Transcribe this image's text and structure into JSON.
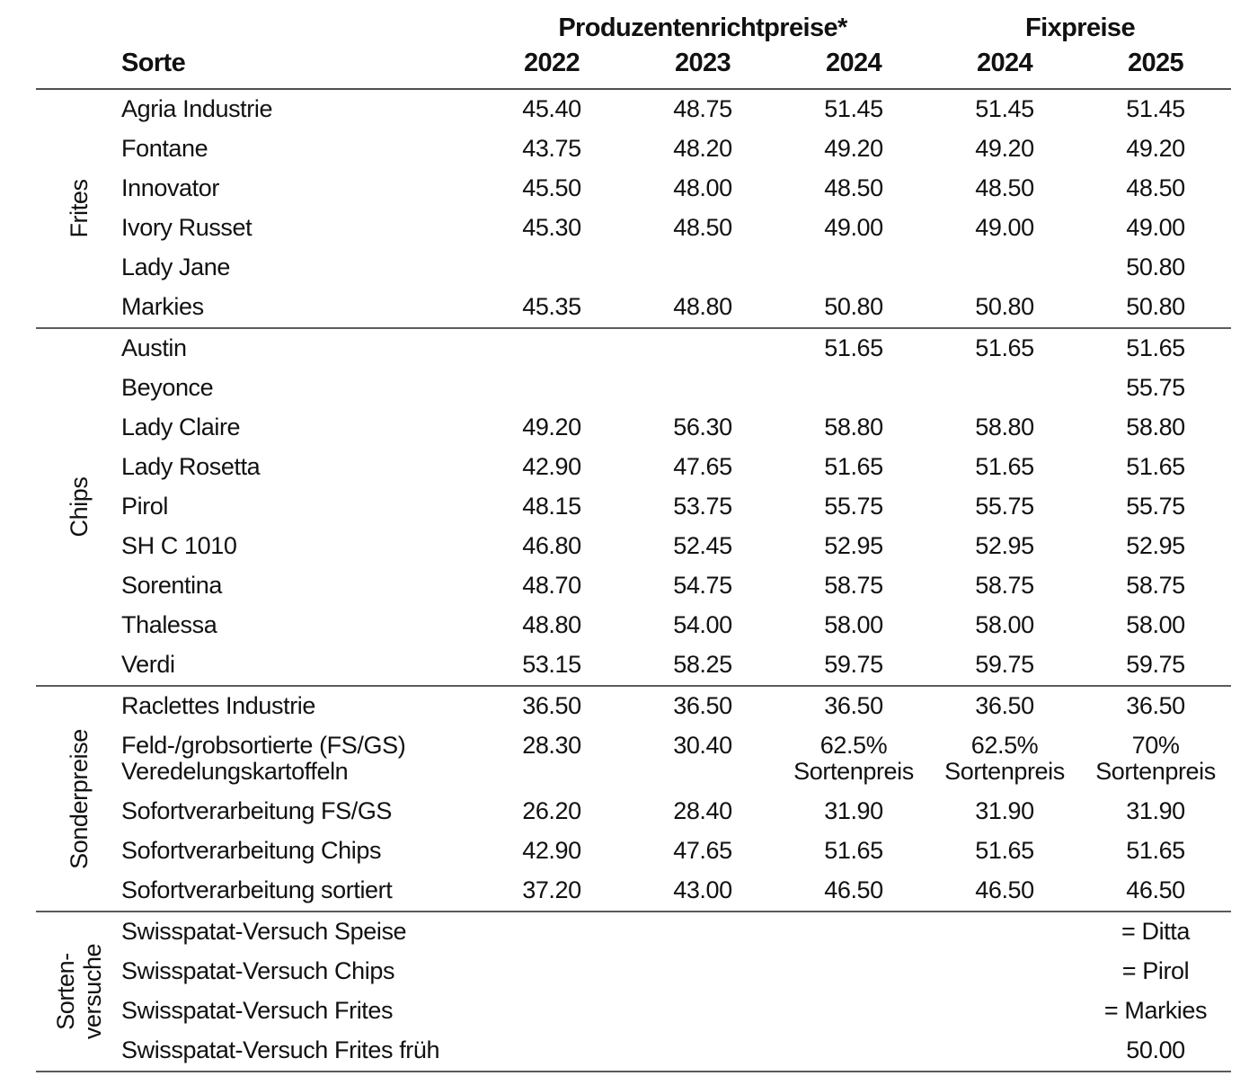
{
  "colors": {
    "background": "#ffffff",
    "text": "#111111",
    "rule": "#5b5b5b"
  },
  "table": {
    "col_groups": [
      {
        "label": "Produzentenrichtpreise*",
        "span": 3
      },
      {
        "label": "Fixpreise",
        "span": 2
      }
    ],
    "sorte_header": "Sorte",
    "year_headers": [
      "2022",
      "2023",
      "2024",
      "2024",
      "2025"
    ],
    "groups": [
      {
        "label": "Frites",
        "rows": [
          {
            "sorte": "Agria Industrie",
            "values": [
              "45.40",
              "48.75",
              "51.45",
              "51.45",
              "51.45"
            ]
          },
          {
            "sorte": "Fontane",
            "values": [
              "43.75",
              "48.20",
              "49.20",
              "49.20",
              "49.20"
            ]
          },
          {
            "sorte": "Innovator",
            "values": [
              "45.50",
              "48.00",
              "48.50",
              "48.50",
              "48.50"
            ]
          },
          {
            "sorte": "Ivory Russet",
            "values": [
              "45.30",
              "48.50",
              "49.00",
              "49.00",
              "49.00"
            ]
          },
          {
            "sorte": "Lady Jane",
            "values": [
              "",
              "",
              "",
              "",
              "50.80"
            ]
          },
          {
            "sorte": "Markies",
            "values": [
              "45.35",
              "48.80",
              "50.80",
              "50.80",
              "50.80"
            ]
          }
        ]
      },
      {
        "label": "Chips",
        "rows": [
          {
            "sorte": "Austin",
            "values": [
              "",
              "",
              "51.65",
              "51.65",
              "51.65"
            ]
          },
          {
            "sorte": "Beyonce",
            "values": [
              "",
              "",
              "",
              "",
              "55.75"
            ]
          },
          {
            "sorte": "Lady Claire",
            "values": [
              "49.20",
              "56.30",
              "58.80",
              "58.80",
              "58.80"
            ]
          },
          {
            "sorte": "Lady Rosetta",
            "values": [
              "42.90",
              "47.65",
              "51.65",
              "51.65",
              "51.65"
            ]
          },
          {
            "sorte": "Pirol",
            "values": [
              "48.15",
              "53.75",
              "55.75",
              "55.75",
              "55.75"
            ]
          },
          {
            "sorte": "SH C 1010",
            "values": [
              "46.80",
              "52.45",
              "52.95",
              "52.95",
              "52.95"
            ]
          },
          {
            "sorte": "Sorentina",
            "values": [
              "48.70",
              "54.75",
              "58.75",
              "58.75",
              "58.75"
            ]
          },
          {
            "sorte": "Thalessa",
            "values": [
              "48.80",
              "54.00",
              "58.00",
              "58.00",
              "58.00"
            ]
          },
          {
            "sorte": "Verdi",
            "values": [
              "53.15",
              "58.25",
              "59.75",
              "59.75",
              "59.75"
            ]
          }
        ]
      },
      {
        "label": "Sonderpreise",
        "rows": [
          {
            "sorte": "Raclettes Industrie",
            "values": [
              "36.50",
              "36.50",
              "36.50",
              "36.50",
              "36.50"
            ]
          },
          {
            "sorte": "Feld-/grobsortierte (FS/GS)\nVeredelungskartoffeln",
            "values": [
              "28.30",
              "30.40",
              "62.5%\nSortenpreis",
              "62.5%\nSortenpreis",
              "70%\nSortenpreis"
            ]
          },
          {
            "sorte": "Sofortverarbeitung FS/GS",
            "values": [
              "26.20",
              "28.40",
              "31.90",
              "31.90",
              "31.90"
            ]
          },
          {
            "sorte": "Sofortverarbeitung Chips",
            "values": [
              "42.90",
              "47.65",
              "51.65",
              "51.65",
              "51.65"
            ]
          },
          {
            "sorte": "Sofortverarbeitung sortiert",
            "values": [
              "37.20",
              "43.00",
              "46.50",
              "46.50",
              "46.50"
            ]
          }
        ]
      },
      {
        "label": "Sorten-\nversuche",
        "rows": [
          {
            "sorte": "Swisspatat-Versuch Speise",
            "values": [
              "",
              "",
              "",
              "",
              "= Ditta"
            ]
          },
          {
            "sorte": "Swisspatat-Versuch Chips",
            "values": [
              "",
              "",
              "",
              "",
              "= Pirol"
            ]
          },
          {
            "sorte": "Swisspatat-Versuch Frites",
            "values": [
              "",
              "",
              "",
              "",
              "= Markies"
            ]
          },
          {
            "sorte": "Swisspatat-Versuch Frites früh",
            "values": [
              "",
              "",
              "",
              "",
              "50.00"
            ]
          }
        ]
      }
    ]
  }
}
